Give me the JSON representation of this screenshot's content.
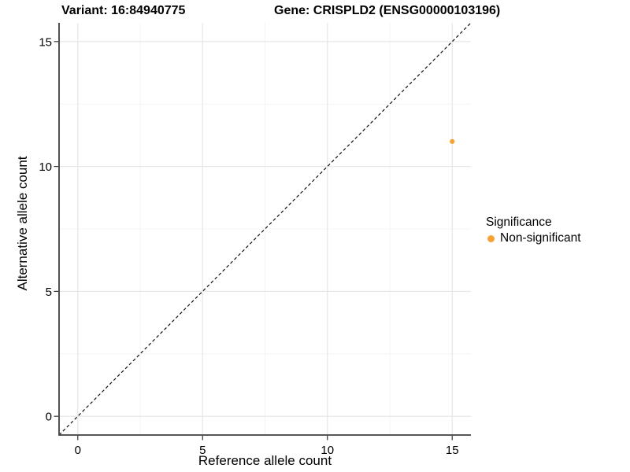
{
  "header": {
    "variant_title": "Variant: 16:84940775",
    "gene_title": "Gene: CRISPLD2 (ENSG00000103196)"
  },
  "chart_data": {
    "type": "scatter",
    "title_left": "Variant: 16:84940775",
    "title_right": "Gene: CRISPLD2 (ENSG00000103196)",
    "xlabel": "Reference allele count",
    "ylabel": "Alternative allele count",
    "xlim": [
      -0.75,
      15.75
    ],
    "ylim": [
      -0.75,
      15.75
    ],
    "xticks": [
      0,
      5,
      10,
      15
    ],
    "yticks": [
      0,
      5,
      10,
      15
    ],
    "minor_ticks": [
      2.5,
      7.5,
      12.5
    ],
    "grid": true,
    "reference_line": {
      "type": "identity",
      "style": "dashed",
      "color": "#111111"
    },
    "series": [
      {
        "name": "Non-significant",
        "color": "#F9A233",
        "points": [
          {
            "x": 15,
            "y": 11
          }
        ]
      }
    ],
    "legend": {
      "title": "Significance",
      "position": "right",
      "items": [
        {
          "label": "Non-significant",
          "color": "#F9A233"
        }
      ]
    },
    "colors": {
      "axis_line": "#3F3F3F",
      "tick_mark": "#333333",
      "grid_major": "#E8E8E8",
      "grid_minor": "#F4F4F4",
      "background": "#FFFFFF"
    }
  }
}
